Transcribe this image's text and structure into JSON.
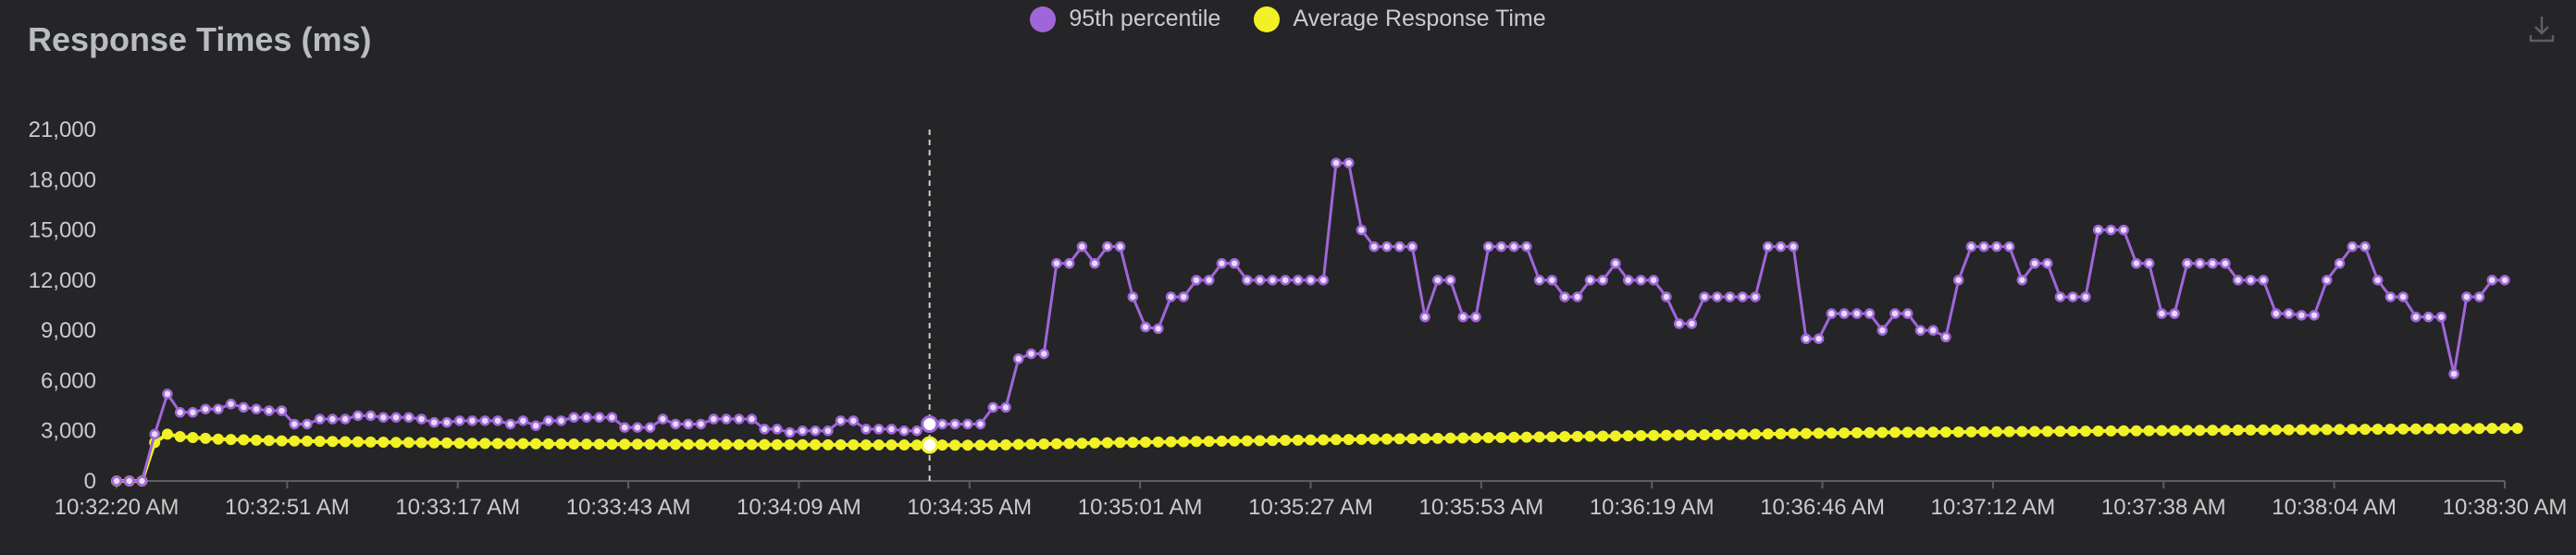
{
  "colors": {
    "background": "#252527",
    "p95": "#a066d9",
    "avg": "#f1f126",
    "grid": "#5d5e60",
    "text": "#c9cccc",
    "title": "#b9bdbd"
  },
  "toolbar": {
    "download_icon": "download-icon"
  },
  "chart_data": {
    "type": "line",
    "title": "Response Times (ms)",
    "xlabel": "",
    "ylabel": "",
    "ylim": [
      0,
      21000
    ],
    "y_ticks": [
      0,
      3000,
      6000,
      9000,
      12000,
      15000,
      18000,
      21000
    ],
    "y_tick_labels": [
      "0",
      "3,000",
      "6,000",
      "9,000",
      "12,000",
      "15,000",
      "18,000",
      "21,000"
    ],
    "x_tick_labels": [
      "10:32:20 AM",
      "10:32:51 AM",
      "10:33:17 AM",
      "10:33:43 AM",
      "10:34:09 AM",
      "10:34:35 AM",
      "10:35:01 AM",
      "10:35:27 AM",
      "10:35:53 AM",
      "10:36:19 AM",
      "10:36:46 AM",
      "10:37:12 AM",
      "10:37:38 AM",
      "10:38:04 AM",
      "10:38:30 AM"
    ],
    "legend_position": "top-center",
    "grid": false,
    "hover_marker_index": 64,
    "series": [
      {
        "name": "95th percentile",
        "color": "#a066d9",
        "values": [
          0,
          0,
          0,
          2800,
          5200,
          4100,
          4100,
          4300,
          4300,
          4600,
          4400,
          4300,
          4200,
          4200,
          3400,
          3400,
          3700,
          3700,
          3700,
          3900,
          3900,
          3800,
          3800,
          3800,
          3700,
          3500,
          3500,
          3600,
          3600,
          3600,
          3600,
          3400,
          3600,
          3300,
          3600,
          3600,
          3800,
          3800,
          3800,
          3800,
          3200,
          3200,
          3200,
          3700,
          3400,
          3400,
          3400,
          3700,
          3700,
          3700,
          3700,
          3100,
          3100,
          2900,
          3000,
          3000,
          3000,
          3600,
          3600,
          3100,
          3100,
          3100,
          3000,
          3000,
          3400,
          3400,
          3400,
          3400,
          3400,
          4400,
          4400,
          7300,
          7600,
          7600,
          13000,
          13000,
          14000,
          13000,
          14000,
          14000,
          11000,
          9200,
          9100,
          11000,
          11000,
          12000,
          12000,
          13000,
          13000,
          12000,
          12000,
          12000,
          12000,
          12000,
          12000,
          12000,
          19000,
          19000,
          15000,
          14000,
          14000,
          14000,
          14000,
          9800,
          12000,
          12000,
          9800,
          9800,
          14000,
          14000,
          14000,
          14000,
          12000,
          12000,
          11000,
          11000,
          12000,
          12000,
          13000,
          12000,
          12000,
          12000,
          11000,
          9400,
          9400,
          11000,
          11000,
          11000,
          11000,
          11000,
          14000,
          14000,
          14000,
          8500,
          8500,
          10000,
          10000,
          10000,
          10000,
          9000,
          10000,
          10000,
          9000,
          9000,
          8600,
          12000,
          14000,
          14000,
          14000,
          14000,
          12000,
          13000,
          13000,
          11000,
          11000,
          11000,
          15000,
          15000,
          15000,
          13000,
          13000,
          10000,
          10000,
          13000,
          13000,
          13000,
          13000,
          12000,
          12000,
          12000,
          10000,
          10000,
          9900,
          9900,
          12000,
          13000,
          14000,
          14000,
          12000,
          11000,
          11000,
          9800,
          9800,
          9800,
          6400,
          11000,
          11000,
          12000,
          12000
        ]
      },
      {
        "name": "Average Response Time",
        "color": "#f1f126",
        "values": [
          0,
          0,
          0,
          2300,
          2800,
          2650,
          2600,
          2550,
          2500,
          2480,
          2460,
          2440,
          2420,
          2400,
          2390,
          2380,
          2370,
          2360,
          2350,
          2340,
          2330,
          2320,
          2310,
          2300,
          2290,
          2280,
          2270,
          2260,
          2250,
          2245,
          2240,
          2235,
          2230,
          2225,
          2220,
          2215,
          2210,
          2205,
          2200,
          2198,
          2196,
          2194,
          2192,
          2190,
          2188,
          2186,
          2184,
          2182,
          2180,
          2178,
          2176,
          2174,
          2172,
          2170,
          2168,
          2166,
          2164,
          2162,
          2160,
          2158,
          2156,
          2154,
          2152,
          2150,
          2148,
          2146,
          2144,
          2142,
          2140,
          2150,
          2165,
          2180,
          2195,
          2210,
          2225,
          2240,
          2255,
          2270,
          2285,
          2300,
          2310,
          2320,
          2330,
          2340,
          2350,
          2360,
          2370,
          2380,
          2390,
          2400,
          2410,
          2420,
          2430,
          2440,
          2450,
          2460,
          2470,
          2480,
          2490,
          2500,
          2510,
          2520,
          2530,
          2540,
          2550,
          2560,
          2570,
          2580,
          2590,
          2600,
          2610,
          2620,
          2630,
          2640,
          2650,
          2660,
          2670,
          2680,
          2690,
          2700,
          2710,
          2720,
          2730,
          2740,
          2750,
          2760,
          2770,
          2780,
          2790,
          2800,
          2810,
          2820,
          2830,
          2840,
          2850,
          2860,
          2870,
          2880,
          2890,
          2900,
          2905,
          2910,
          2915,
          2920,
          2925,
          2930,
          2935,
          2940,
          2945,
          2950,
          2955,
          2960,
          2965,
          2970,
          2975,
          2980,
          2985,
          2990,
          2995,
          3000,
          3005,
          3010,
          3015,
          3020,
          3025,
          3030,
          3035,
          3040,
          3045,
          3050,
          3055,
          3060,
          3065,
          3070,
          3075,
          3080,
          3085,
          3090,
          3095,
          3100,
          3105,
          3110,
          3115,
          3120,
          3125,
          3130,
          3135,
          3140,
          3145,
          3150
        ]
      }
    ]
  }
}
